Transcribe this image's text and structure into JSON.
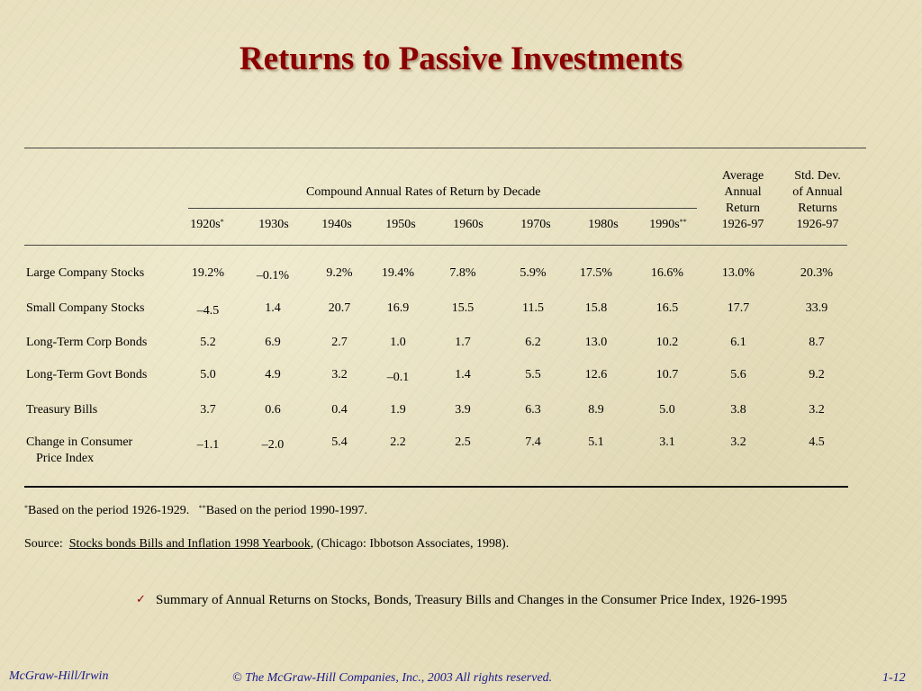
{
  "title": "Returns to Passive Investments",
  "table": {
    "group_header": "Compound Annual Rates of Return by Decade",
    "avg_header": [
      "Average",
      "Annual",
      "Return",
      "1926-97"
    ],
    "std_header": [
      "Std. Dev.",
      "of Annual",
      "Returns",
      "1926-97"
    ],
    "decades": [
      {
        "label": "1920s",
        "sup": "*"
      },
      {
        "label": "1930s",
        "sup": ""
      },
      {
        "label": "1940s",
        "sup": ""
      },
      {
        "label": "1950s",
        "sup": ""
      },
      {
        "label": "1960s",
        "sup": ""
      },
      {
        "label": "1970s",
        "sup": ""
      },
      {
        "label": "1980s",
        "sup": ""
      },
      {
        "label": "1990s",
        "sup": "**"
      }
    ],
    "rows": [
      {
        "label": "Large Company Stocks",
        "label2": "",
        "values": [
          "19.2%",
          "–0.1%",
          "9.2%",
          "19.4%",
          "7.8%",
          "5.9%",
          "17.5%",
          "16.6%",
          "13.0%",
          "20.3%"
        ]
      },
      {
        "label": "Small Company Stocks",
        "label2": "",
        "values": [
          "–4.5",
          "1.4",
          "20.7",
          "16.9",
          "15.5",
          "11.5",
          "15.8",
          "16.5",
          "17.7",
          "33.9"
        ]
      },
      {
        "label": "Long-Term Corp Bonds",
        "label2": "",
        "values": [
          "5.2",
          "6.9",
          "2.7",
          "1.0",
          "1.7",
          "6.2",
          "13.0",
          "10.2",
          "6.1",
          "8.7"
        ]
      },
      {
        "label": "Long-Term Govt Bonds",
        "label2": "",
        "values": [
          "5.0",
          "4.9",
          "3.2",
          "–0.1",
          "1.4",
          "5.5",
          "12.6",
          "10.7",
          "5.6",
          "9.2"
        ]
      },
      {
        "label": "Treasury Bills",
        "label2": "",
        "values": [
          "3.7",
          "0.6",
          "0.4",
          "1.9",
          "3.9",
          "6.3",
          "8.9",
          "5.0",
          "3.8",
          "3.2"
        ]
      },
      {
        "label": "Change in Consumer",
        "label2": "Price Index",
        "values": [
          "–1.1",
          "–2.0",
          "5.4",
          "2.2",
          "2.5",
          "7.4",
          "5.1",
          "3.1",
          "3.2",
          "4.5"
        ]
      }
    ]
  },
  "footnote": {
    "mark1": "*",
    "text1": "Based on the period 1926-1929.",
    "mark2": "**",
    "text2": "Based on the period 1990-1997."
  },
  "source": {
    "prefix": "Source:",
    "link": "Stocks bonds Bills and Inflation 1998 Yearbook",
    "rest": ", (Chicago: Ibbotson Associates, 1998)."
  },
  "bullet": "Summary of Annual Returns on Stocks, Bonds, Treasury Bills and Changes in the Consumer Price Index, 1926-1995",
  "footer": {
    "left": "McGraw-Hill/Irwin",
    "center": "© The McGraw-Hill Companies, Inc., 2003  All rights reserved.",
    "right": "1-12"
  }
}
